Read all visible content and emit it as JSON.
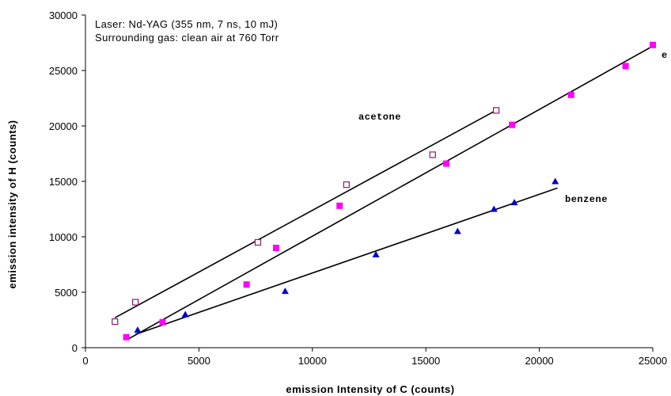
{
  "chart_data": {
    "type": "scatter",
    "annotations": [
      "Laser: Nd-YAG (355 nm, 7 ns, 10 mJ)",
      "Surrounding gas: clean air at 760 Torr"
    ],
    "xlabel": "emission Intensity of C (counts)",
    "ylabel": "emission intensity of H (counts)",
    "xlim": [
      0,
      25000
    ],
    "ylim": [
      0,
      30000
    ],
    "x_ticks": [
      "0",
      "5000",
      "10000",
      "15000",
      "20000",
      "25000"
    ],
    "y_ticks": [
      "0",
      "5000",
      "10000",
      "15000",
      "20000",
      "25000",
      "30000"
    ],
    "grid": false,
    "legend": "none",
    "series": [
      {
        "name": "acetone",
        "marker": "open-square",
        "color": "#8b1a6b",
        "points": [
          [
            1300,
            2350
          ],
          [
            2200,
            4100
          ],
          [
            7600,
            9500
          ],
          [
            11500,
            14700
          ],
          [
            15300,
            17400
          ],
          [
            18100,
            21400
          ]
        ],
        "fit": [
          [
            1300,
            2700
          ],
          [
            18000,
            21300
          ]
        ]
      },
      {
        "name": "e",
        "marker": "filled-square",
        "color": "#ff00ff",
        "points": [
          [
            1800,
            950
          ],
          [
            3400,
            2300
          ],
          [
            7100,
            5700
          ],
          [
            8400,
            9000
          ],
          [
            11200,
            12800
          ],
          [
            15900,
            16600
          ],
          [
            18800,
            20100
          ],
          [
            21400,
            22800
          ],
          [
            23800,
            25400
          ],
          [
            25000,
            27300
          ]
        ],
        "fit": [
          [
            1900,
            800
          ],
          [
            25000,
            27200
          ]
        ]
      },
      {
        "name": "benzene",
        "marker": "filled-triangle",
        "color": "#0000cc",
        "points": [
          [
            2300,
            1600
          ],
          [
            4400,
            3000
          ],
          [
            8800,
            5100
          ],
          [
            12800,
            8400
          ],
          [
            16400,
            10500
          ],
          [
            18000,
            12500
          ],
          [
            18900,
            13100
          ],
          [
            20700,
            15000
          ]
        ],
        "fit": [
          [
            2200,
            1200
          ],
          [
            20800,
            14400
          ]
        ]
      }
    ]
  }
}
